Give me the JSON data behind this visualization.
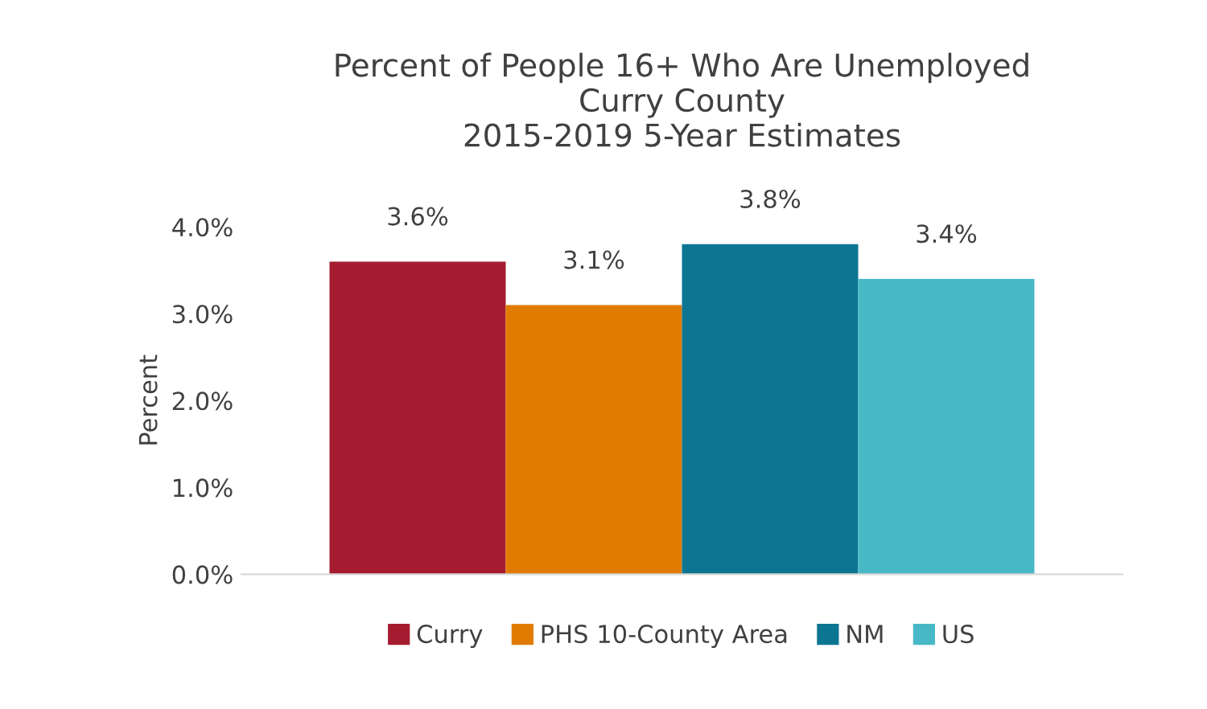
{
  "chart_data": {
    "type": "bar",
    "title": "Percent of People 16+ Who Are Unemployed\nCurry County\n2015-2019 5-Year Estimates",
    "ylabel": "Percent",
    "categories": [
      null
    ],
    "series": [
      {
        "name": "Curry",
        "color": "#a51c30",
        "values": [
          3.6
        ],
        "value_labels": [
          "3.6%"
        ]
      },
      {
        "name": "PHS 10-County Area",
        "color": "#e07b00",
        "values": [
          3.1
        ],
        "value_labels": [
          "3.1%"
        ]
      },
      {
        "name": "NM",
        "color": "#0b7592",
        "values": [
          3.8
        ],
        "value_labels": [
          "3.8%"
        ]
      },
      {
        "name": "US",
        "color": "#49b8c6",
        "values": [
          3.4
        ],
        "value_labels": [
          "3.4%"
        ]
      }
    ],
    "ylim": [
      0,
      4.0
    ],
    "yticks": [
      {
        "value": 0,
        "label": "0.0%"
      },
      {
        "value": 1,
        "label": "1.0%"
      },
      {
        "value": 2,
        "label": "2.0%"
      },
      {
        "value": 3,
        "label": "3.0%"
      },
      {
        "value": 4,
        "label": "4.0%"
      }
    ],
    "grid": false,
    "legend": "bottom"
  }
}
